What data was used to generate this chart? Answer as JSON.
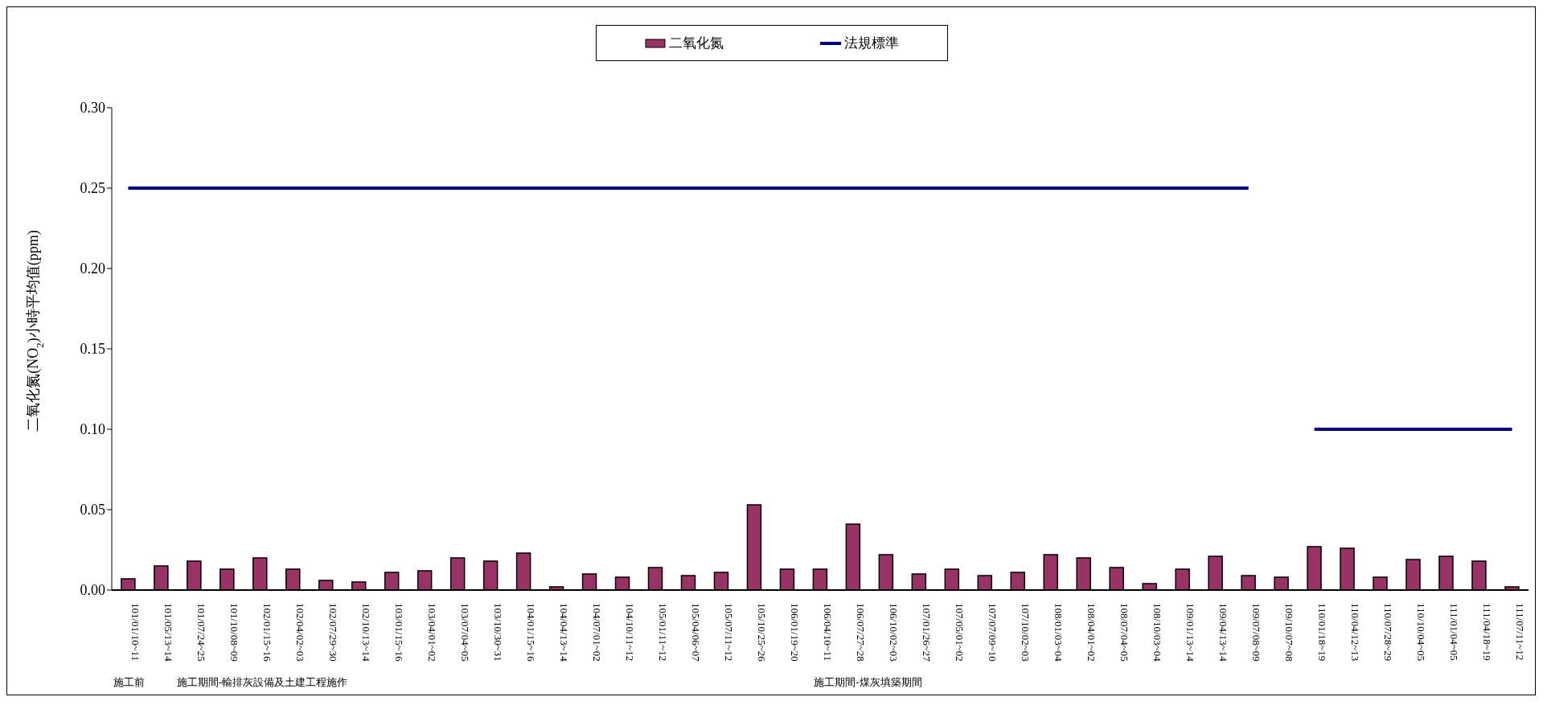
{
  "chart_data": {
    "type": "bar",
    "ylabel": "二氧化氮(NO$_{2}$)小時平均值(ppm)",
    "categories": [
      "101/01/10~11",
      "101/05/13~14",
      "101/07/24~25",
      "101/10/08~09",
      "102/01/15~16",
      "102/04/02~03",
      "102/07/29~30",
      "102/10/13~14",
      "103/01/15~16",
      "103/04/01~02",
      "103/07/04~05",
      "103/10/30~31",
      "104/01/15~16",
      "104/04/13~14",
      "104/07/01~02",
      "104/10/11~12",
      "105/01/11~12",
      "105/04/06~07",
      "105/07/11~12",
      "105/10/25~26",
      "106/01/19~20",
      "106/04/10~11",
      "106/07/27~28",
      "106/10/02~03",
      "107/01/26~27",
      "107/05/01~02",
      "107/07/09~10",
      "107/10/02~03",
      "108/01/03~04",
      "108/04/01~02",
      "108/07/04~05",
      "108/10/03~04",
      "109/01/13~14",
      "109/04/13~14",
      "109/07/08~09",
      "109/10/07~08",
      "110/01/18~19",
      "110/04/12~13",
      "110/07/28~29",
      "110/10/04~05",
      "111/01/04~05",
      "111/04/18~19",
      "111/07/11~12"
    ],
    "series": [
      {
        "name": "二氧化氮",
        "color": "#993366",
        "values": [
          0.007,
          0.015,
          0.018,
          0.013,
          0.02,
          0.013,
          0.006,
          0.005,
          0.011,
          0.012,
          0.02,
          0.018,
          0.023,
          0.002,
          0.01,
          0.008,
          0.014,
          0.009,
          0.011,
          0.053,
          0.013,
          0.013,
          0.041,
          0.022,
          0.01,
          0.013,
          0.009,
          0.011,
          0.022,
          0.02,
          0.014,
          0.004,
          0.013,
          0.021,
          0.009,
          0.008,
          0.027,
          0.026,
          0.008,
          0.019,
          0.021,
          0.018,
          0.002
        ]
      },
      {
        "name": "法規標準",
        "type": "line",
        "color": "#000080",
        "values": [
          0.25,
          0.25,
          0.25,
          0.25,
          0.25,
          0.25,
          0.25,
          0.25,
          0.25,
          0.25,
          0.25,
          0.25,
          0.25,
          0.25,
          0.25,
          0.25,
          0.25,
          0.25,
          0.25,
          0.25,
          0.25,
          0.25,
          0.25,
          0.25,
          0.25,
          0.25,
          0.25,
          0.25,
          0.25,
          0.25,
          0.25,
          0.25,
          0.25,
          0.25,
          0.25,
          null,
          0.1,
          0.1,
          0.1,
          0.1,
          0.1,
          0.1,
          0.1
        ]
      }
    ],
    "ylim": [
      0,
      0.3
    ],
    "yticks": [
      {
        "value": 0,
        "label": "0.00"
      },
      {
        "value": 0.05,
        "label": "0.05"
      },
      {
        "value": 0.1,
        "label": "0.10"
      },
      {
        "value": 0.15,
        "label": "0.15"
      },
      {
        "value": 0.2,
        "label": "0.20"
      },
      {
        "value": 0.25,
        "label": "0.25"
      },
      {
        "value": 0.3,
        "label": "0.30"
      }
    ],
    "annotations": [
      "施工前",
      "施工期間-輸排灰設備及土建工程施作",
      "施工期間-煤灰填築期間"
    ],
    "grid": false,
    "legend": "top",
    "marker": "none",
    "line_style": "solid"
  }
}
